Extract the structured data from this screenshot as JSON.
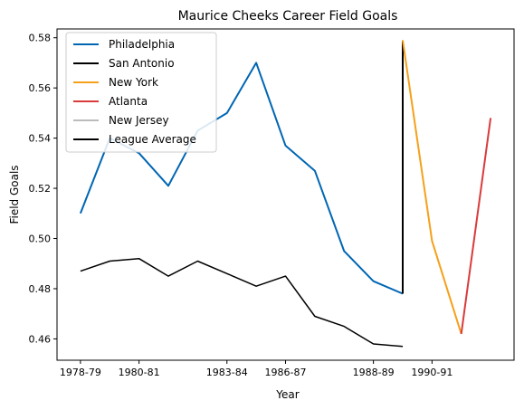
{
  "chart_data": {
    "type": "line",
    "title": "Maurice Cheeks Career Field Goals",
    "xlabel": "Year",
    "ylabel": "Field Goals",
    "xlim": [
      -0.8,
      14.8
    ],
    "ylim": [
      0.4515,
      0.5835
    ],
    "x_tick_labels": [
      "1978-79",
      "1980-81",
      "1983-84",
      "1986-87",
      "1988-89",
      "1990-91"
    ],
    "x_tick_positions": [
      0,
      2,
      5,
      7,
      10,
      12
    ],
    "y_ticks": [
      0.46,
      0.48,
      0.5,
      0.52,
      0.54,
      0.56,
      0.58
    ],
    "y_tick_labels": [
      "0.46",
      "0.48",
      "0.50",
      "0.52",
      "0.54",
      "0.56",
      "0.58"
    ],
    "grid": false,
    "legend_position": "top-left",
    "series": [
      {
        "name": "Philadelphia",
        "color": "#0066b3",
        "x": [
          0,
          1,
          2,
          3,
          4,
          5,
          6,
          7,
          8,
          9,
          10,
          11
        ],
        "values": [
          0.51,
          0.54,
          0.534,
          0.521,
          0.543,
          0.55,
          0.57,
          0.537,
          0.527,
          0.495,
          0.483,
          0.478
        ]
      },
      {
        "name": "San Antonio",
        "color": "#000000",
        "x": [
          11,
          11
        ],
        "values": [
          0.478,
          0.579
        ]
      },
      {
        "name": "New York",
        "color": "#f5a01a",
        "x": [
          11,
          12,
          13
        ],
        "values": [
          0.579,
          0.499,
          0.462
        ]
      },
      {
        "name": "Atlanta",
        "color": "#d93b3b",
        "x": [
          13,
          14
        ],
        "values": [
          0.462,
          0.548
        ]
      },
      {
        "name": "New Jersey",
        "color": "#bbbbbb",
        "x": [],
        "values": []
      },
      {
        "name": "League Average",
        "color": "#000000",
        "x": [
          0,
          1,
          2,
          3,
          4,
          5,
          6,
          7,
          8,
          9,
          10,
          11
        ],
        "values": [
          0.487,
          0.491,
          0.492,
          0.485,
          0.491,
          0.486,
          0.481,
          0.485,
          0.469,
          0.465,
          0.458,
          0.457
        ]
      }
    ]
  }
}
